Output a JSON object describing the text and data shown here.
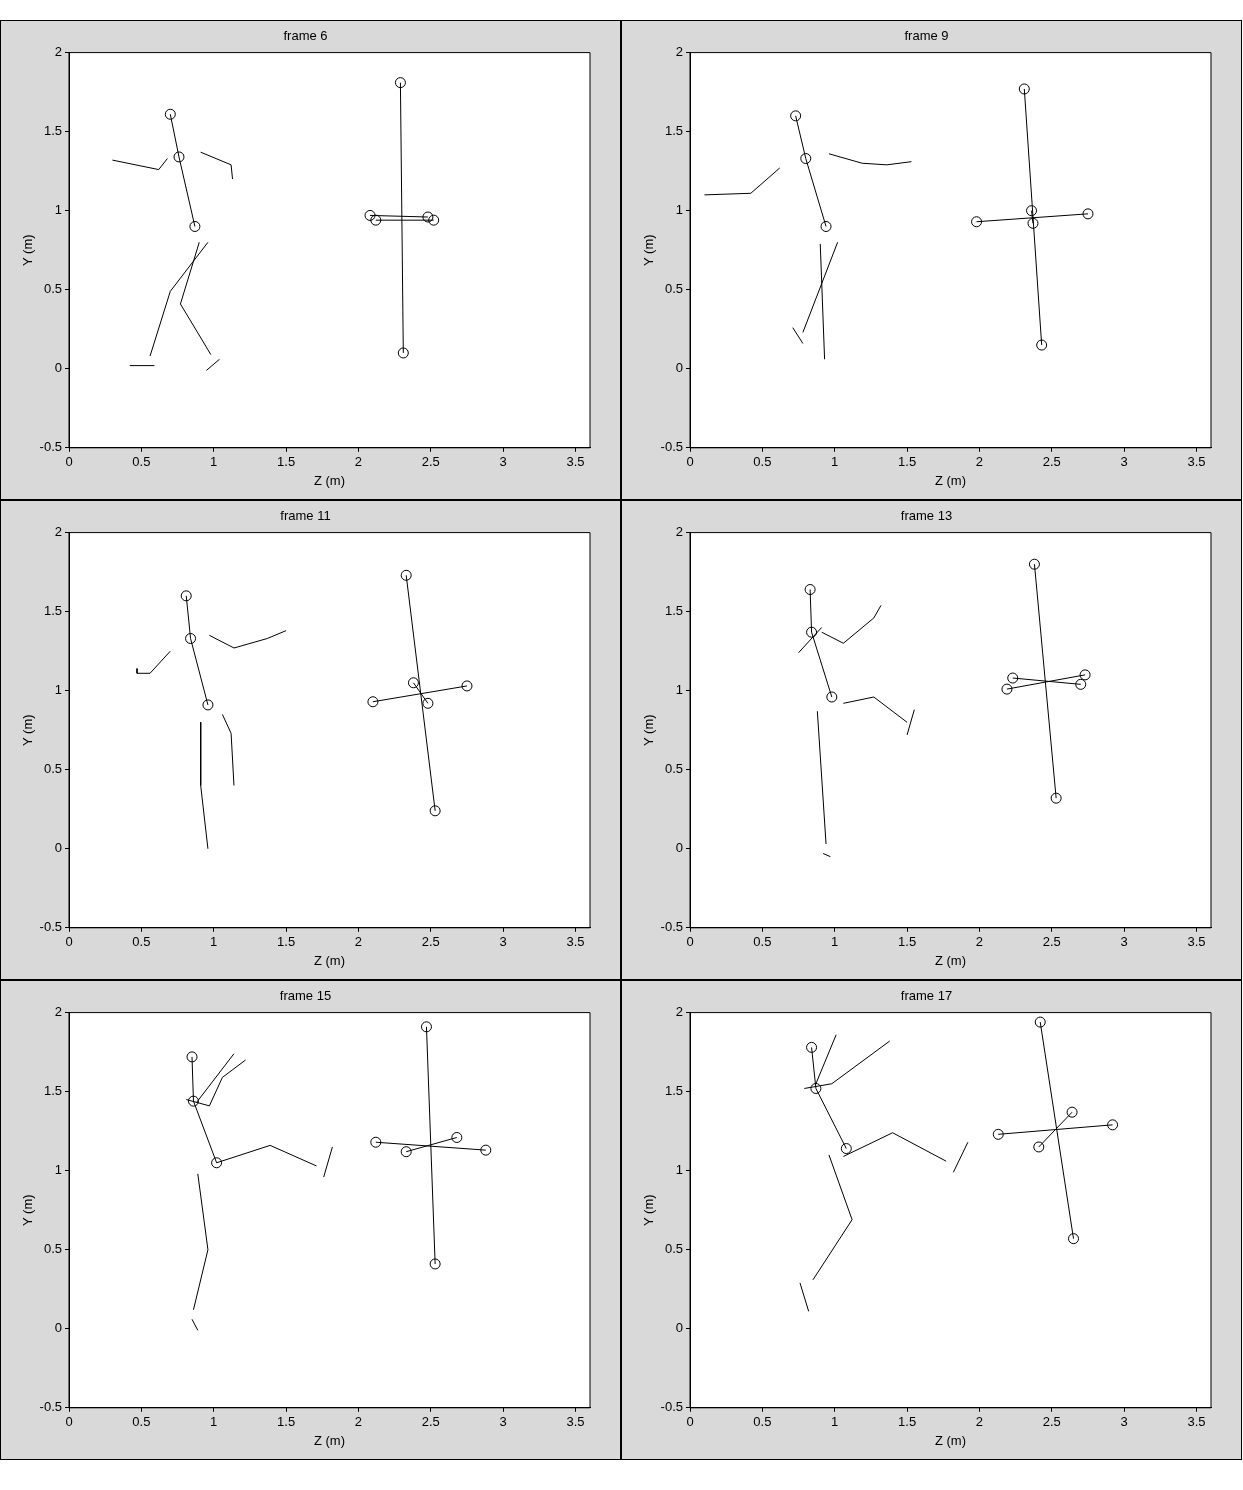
{
  "chart_data": [
    {
      "type": "line",
      "title": "frame 6",
      "xlabel": "Z (m)",
      "ylabel": "Y (m)",
      "xlim": [
        0,
        3.6
      ],
      "ylim": [
        -0.5,
        2
      ],
      "xticks": [
        0,
        0.5,
        1,
        1.5,
        2,
        2.5,
        3,
        3.5
      ],
      "yticks": [
        -0.5,
        0,
        0.5,
        1,
        1.5,
        2
      ],
      "grid": false,
      "legend": false,
      "series": [
        {
          "color": "#000000",
          "marker": "circle",
          "x": [
            0.7,
            0.76,
            0.87
          ],
          "values": [
            1.61,
            1.34,
            0.9
          ]
        },
        {
          "color": "#000000",
          "marker": "circle",
          "x": [
            2.29,
            2.31
          ],
          "values": [
            1.81,
            0.1
          ]
        },
        {
          "color": "#000000",
          "marker": "circle",
          "x": [
            2.08,
            2.48
          ],
          "values": [
            0.97,
            0.96
          ]
        },
        {
          "color": "#000000",
          "marker": "circle",
          "x": [
            2.12,
            2.52
          ],
          "values": [
            0.94,
            0.94
          ]
        },
        {
          "color": "#000000",
          "marker": "none",
          "x": [
            0.3,
            0.62,
            0.68
          ],
          "values": [
            1.32,
            1.26,
            1.33
          ]
        },
        {
          "color": "#000000",
          "marker": "none",
          "x": [
            0.91,
            1.12,
            1.13
          ],
          "values": [
            1.37,
            1.29,
            1.2
          ]
        },
        {
          "color": "#000000",
          "marker": "none",
          "x": [
            0.56,
            0.7,
            0.96
          ],
          "values": [
            0.08,
            0.49,
            0.8
          ]
        },
        {
          "color": "#000000",
          "marker": "none",
          "x": [
            0.9,
            0.77,
            0.98
          ],
          "values": [
            0.8,
            0.41,
            0.09
          ]
        },
        {
          "color": "#000000",
          "marker": "none",
          "x": [
            0.42,
            0.59
          ],
          "values": [
            0.02,
            0.02
          ]
        },
        {
          "color": "#000000",
          "marker": "none",
          "x": [
            0.95,
            1.04
          ],
          "values": [
            -0.01,
            0.06
          ]
        }
      ]
    },
    {
      "type": "line",
      "title": "frame 9",
      "xlabel": "Z (m)",
      "ylabel": "Y (m)",
      "xlim": [
        0,
        3.6
      ],
      "ylim": [
        -0.5,
        2
      ],
      "xticks": [
        0,
        0.5,
        1,
        1.5,
        2,
        2.5,
        3,
        3.5
      ],
      "yticks": [
        -0.5,
        0,
        0.5,
        1,
        1.5,
        2
      ],
      "grid": false,
      "legend": false,
      "series": [
        {
          "color": "#000000",
          "marker": "circle",
          "x": [
            0.73,
            0.8,
            0.94
          ],
          "values": [
            1.6,
            1.33,
            0.9
          ]
        },
        {
          "color": "#000000",
          "marker": "circle",
          "x": [
            2.31,
            2.43
          ],
          "values": [
            1.77,
            0.15
          ]
        },
        {
          "color": "#000000",
          "marker": "circle",
          "x": [
            1.98,
            2.75
          ],
          "values": [
            0.93,
            0.98
          ]
        },
        {
          "color": "#000000",
          "marker": "circle",
          "x": [
            2.36,
            2.37
          ],
          "values": [
            1.0,
            0.92
          ]
        },
        {
          "color": "#000000",
          "marker": "none",
          "x": [
            0.1,
            0.42,
            0.62
          ],
          "values": [
            1.1,
            1.11,
            1.27
          ]
        },
        {
          "color": "#000000",
          "marker": "none",
          "x": [
            0.96,
            1.19,
            1.36,
            1.53
          ],
          "values": [
            1.36,
            1.3,
            1.29,
            1.31
          ]
        },
        {
          "color": "#000000",
          "marker": "none",
          "x": [
            1.02,
            0.78
          ],
          "values": [
            0.8,
            0.23
          ]
        },
        {
          "color": "#000000",
          "marker": "none",
          "x": [
            0.9,
            0.93
          ],
          "values": [
            0.79,
            0.06
          ]
        },
        {
          "color": "#000000",
          "marker": "none",
          "x": [
            0.71,
            0.78
          ],
          "values": [
            0.26,
            0.16
          ]
        }
      ]
    },
    {
      "type": "line",
      "title": "frame 11",
      "xlabel": "Z (m)",
      "ylabel": "Y (m)",
      "xlim": [
        0,
        3.6
      ],
      "ylim": [
        -0.5,
        2
      ],
      "xticks": [
        0,
        0.5,
        1,
        1.5,
        2,
        2.5,
        3,
        3.5
      ],
      "yticks": [
        -0.5,
        0,
        0.5,
        1,
        1.5,
        2
      ],
      "grid": false,
      "legend": false,
      "series": [
        {
          "color": "#000000",
          "marker": "circle",
          "x": [
            0.81,
            0.84,
            0.96
          ],
          "values": [
            1.6,
            1.33,
            0.91
          ]
        },
        {
          "color": "#000000",
          "marker": "circle",
          "x": [
            2.33,
            2.53
          ],
          "values": [
            1.73,
            0.24
          ]
        },
        {
          "color": "#000000",
          "marker": "circle",
          "x": [
            2.1,
            2.75
          ],
          "values": [
            0.93,
            1.03
          ]
        },
        {
          "color": "#000000",
          "marker": "circle",
          "x": [
            2.38,
            2.48
          ],
          "values": [
            1.05,
            0.92
          ]
        },
        {
          "color": "#000000",
          "marker": "none",
          "x": [
            0.47,
            0.47,
            0.56,
            0.7
          ],
          "values": [
            1.14,
            1.11,
            1.11,
            1.25
          ]
        },
        {
          "color": "#000000",
          "marker": "none",
          "x": [
            0.97,
            1.14,
            1.37,
            1.5
          ],
          "values": [
            1.35,
            1.27,
            1.33,
            1.38
          ]
        },
        {
          "color": "#000000",
          "marker": "none",
          "x": [
            0.91,
            0.91,
            0.96
          ],
          "values": [
            0.8,
            0.4,
            0.0
          ]
        },
        {
          "color": "#000000",
          "marker": "none",
          "x": [
            1.06,
            1.12,
            1.14
          ],
          "values": [
            0.85,
            0.73,
            0.4
          ]
        }
      ]
    },
    {
      "type": "line",
      "title": "frame 13",
      "xlabel": "Z (m)",
      "ylabel": "Y (m)",
      "xlim": [
        0,
        3.6
      ],
      "ylim": [
        -0.5,
        2
      ],
      "xticks": [
        0,
        0.5,
        1,
        1.5,
        2,
        2.5,
        3,
        3.5
      ],
      "yticks": [
        -0.5,
        0,
        0.5,
        1,
        1.5,
        2
      ],
      "grid": false,
      "legend": false,
      "series": [
        {
          "color": "#000000",
          "marker": "circle",
          "x": [
            0.83,
            0.84,
            0.98
          ],
          "values": [
            1.64,
            1.37,
            0.96
          ]
        },
        {
          "color": "#000000",
          "marker": "circle",
          "x": [
            2.38,
            2.53
          ],
          "values": [
            1.8,
            0.32
          ]
        },
        {
          "color": "#000000",
          "marker": "circle",
          "x": [
            2.23,
            2.7
          ],
          "values": [
            1.08,
            1.04
          ]
        },
        {
          "color": "#000000",
          "marker": "circle",
          "x": [
            2.19,
            2.73
          ],
          "values": [
            1.01,
            1.1
          ]
        },
        {
          "color": "#000000",
          "marker": "none",
          "x": [
            0.75,
            0.91
          ],
          "values": [
            1.24,
            1.4
          ]
        },
        {
          "color": "#000000",
          "marker": "none",
          "x": [
            0.91,
            1.06,
            1.27,
            1.32
          ],
          "values": [
            1.37,
            1.3,
            1.46,
            1.54
          ]
        },
        {
          "color": "#000000",
          "marker": "none",
          "x": [
            1.06,
            1.27,
            1.5
          ],
          "values": [
            0.92,
            0.96,
            0.8
          ]
        },
        {
          "color": "#000000",
          "marker": "none",
          "x": [
            1.5,
            1.55
          ],
          "values": [
            0.72,
            0.88
          ]
        },
        {
          "color": "#000000",
          "marker": "none",
          "x": [
            0.88,
            0.94
          ],
          "values": [
            0.87,
            0.03
          ]
        },
        {
          "color": "#000000",
          "marker": "none",
          "x": [
            0.92,
            0.97
          ],
          "values": [
            -0.03,
            -0.05
          ]
        }
      ]
    },
    {
      "type": "line",
      "title": "frame 15",
      "xlabel": "Z (m)",
      "ylabel": "Y (m)",
      "xlim": [
        0,
        3.6
      ],
      "ylim": [
        -0.5,
        2
      ],
      "xticks": [
        0,
        0.5,
        1,
        1.5,
        2,
        2.5,
        3,
        3.5
      ],
      "yticks": [
        -0.5,
        0,
        0.5,
        1,
        1.5,
        2
      ],
      "grid": false,
      "legend": false,
      "series": [
        {
          "color": "#000000",
          "marker": "circle",
          "x": [
            0.85,
            0.86,
            1.02
          ],
          "values": [
            1.72,
            1.44,
            1.05
          ]
        },
        {
          "color": "#000000",
          "marker": "circle",
          "x": [
            2.47,
            2.53
          ],
          "values": [
            1.91,
            0.41
          ]
        },
        {
          "color": "#000000",
          "marker": "circle",
          "x": [
            2.12,
            2.88
          ],
          "values": [
            1.18,
            1.13
          ]
        },
        {
          "color": "#000000",
          "marker": "circle",
          "x": [
            2.33,
            2.68
          ],
          "values": [
            1.12,
            1.21
          ]
        },
        {
          "color": "#000000",
          "marker": "none",
          "x": [
            0.81,
            0.97,
            1.06,
            1.22
          ],
          "values": [
            1.45,
            1.41,
            1.59,
            1.7
          ]
        },
        {
          "color": "#000000",
          "marker": "none",
          "x": [
            0.88,
            1.14
          ],
          "values": [
            1.43,
            1.74
          ]
        },
        {
          "color": "#000000",
          "marker": "none",
          "x": [
            1.02,
            1.39,
            1.71
          ],
          "values": [
            1.05,
            1.16,
            1.03
          ]
        },
        {
          "color": "#000000",
          "marker": "none",
          "x": [
            1.76,
            1.82
          ],
          "values": [
            0.96,
            1.15
          ]
        },
        {
          "color": "#000000",
          "marker": "none",
          "x": [
            0.89,
            0.96,
            0.86
          ],
          "values": [
            0.98,
            0.5,
            0.12
          ]
        },
        {
          "color": "#000000",
          "marker": "none",
          "x": [
            0.85,
            0.89
          ],
          "values": [
            0.06,
            -0.01
          ]
        }
      ]
    },
    {
      "type": "line",
      "title": "frame 17",
      "xlabel": "Z (m)",
      "ylabel": "Y (m)",
      "xlim": [
        0,
        3.6
      ],
      "ylim": [
        -0.5,
        2
      ],
      "xticks": [
        0,
        0.5,
        1,
        1.5,
        2,
        2.5,
        3,
        3.5
      ],
      "yticks": [
        -0.5,
        0,
        0.5,
        1,
        1.5,
        2
      ],
      "grid": false,
      "legend": false,
      "series": [
        {
          "color": "#000000",
          "marker": "circle",
          "x": [
            0.84,
            0.87,
            1.08
          ],
          "values": [
            1.78,
            1.52,
            1.14
          ]
        },
        {
          "color": "#000000",
          "marker": "circle",
          "x": [
            2.42,
            2.65
          ],
          "values": [
            1.94,
            0.57
          ]
        },
        {
          "color": "#000000",
          "marker": "circle",
          "x": [
            2.13,
            2.92
          ],
          "values": [
            1.23,
            1.29
          ]
        },
        {
          "color": "#000000",
          "marker": "circle",
          "x": [
            2.41,
            2.64
          ],
          "values": [
            1.15,
            1.37
          ]
        },
        {
          "color": "#000000",
          "marker": "none",
          "x": [
            0.79,
            0.98,
            1.38
          ],
          "values": [
            1.52,
            1.55,
            1.82
          ]
        },
        {
          "color": "#000000",
          "marker": "none",
          "x": [
            0.87,
            1.01
          ],
          "values": [
            1.55,
            1.86
          ]
        },
        {
          "color": "#000000",
          "marker": "none",
          "x": [
            1.06,
            1.4,
            1.77
          ],
          "values": [
            1.09,
            1.24,
            1.06
          ]
        },
        {
          "color": "#000000",
          "marker": "none",
          "x": [
            1.82,
            1.92
          ],
          "values": [
            0.99,
            1.18
          ]
        },
        {
          "color": "#000000",
          "marker": "none",
          "x": [
            0.96,
            1.12,
            0.85
          ],
          "values": [
            1.1,
            0.69,
            0.31
          ]
        },
        {
          "color": "#000000",
          "marker": "none",
          "x": [
            0.76,
            0.82
          ],
          "values": [
            0.29,
            0.11
          ]
        }
      ]
    }
  ]
}
